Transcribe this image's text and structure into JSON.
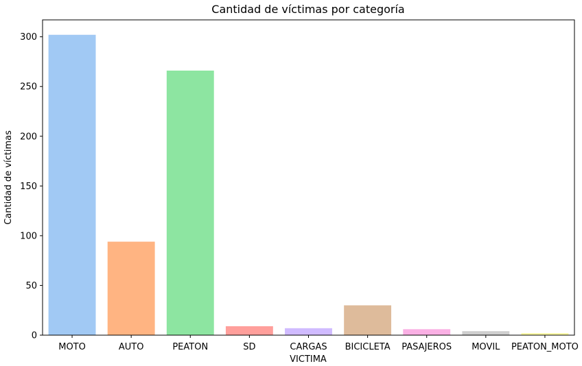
{
  "chart_data": {
    "type": "bar",
    "title": "Cantidad de víctimas por categoría",
    "xlabel": "VICTIMA",
    "ylabel": "Cantidad de víctimas",
    "ylim": [
      0,
      317
    ],
    "yticks": [
      0,
      50,
      100,
      150,
      200,
      250,
      300
    ],
    "grid": false,
    "categories": [
      "MOTO",
      "AUTO",
      "PEATON",
      "SD",
      "CARGAS",
      "BICICLETA",
      "PASAJEROS",
      "MOVIL",
      "PEATON_MOTO"
    ],
    "values": [
      302,
      94,
      266,
      9,
      7,
      30,
      6,
      4,
      2
    ],
    "colors": [
      "#a1c9f4",
      "#ffb482",
      "#8de5a1",
      "#ff9f9b",
      "#d0bbff",
      "#debb9b",
      "#fab0e4",
      "#cfcfcf",
      "#fffea3"
    ]
  }
}
